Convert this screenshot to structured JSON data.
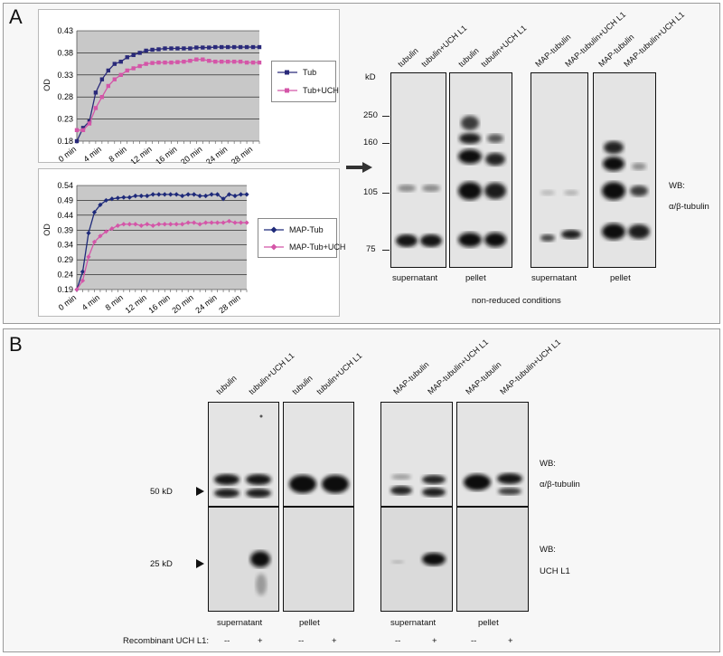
{
  "panelA": {
    "letter": "A",
    "chart1": {
      "ylabel": "OD",
      "yticks": [
        "0.43",
        "0.38",
        "0.33",
        "0.28",
        "0.23",
        "0.18"
      ],
      "xticks": [
        "0 min",
        "4 min",
        "8 min",
        "12 min",
        "16 min",
        "20 min",
        "24 min",
        "28 min"
      ],
      "legend": [
        "Tub",
        "Tub+UCH"
      ]
    },
    "chart2": {
      "ylabel": "OD",
      "yticks": [
        "0.54",
        "0.49",
        "0.44",
        "0.39",
        "0.34",
        "0.29",
        "0.24",
        "0.19"
      ],
      "xticks": [
        "0 min",
        "4 min",
        "8 min",
        "12 min",
        "16 min",
        "20 min",
        "24 min",
        "28 min"
      ],
      "legend": [
        "MAP-Tub",
        "MAP-Tub+UCH"
      ]
    },
    "blot": {
      "lanes": [
        "tubulin",
        "tubulin+UCH L1",
        "tubulin",
        "tubulin+UCH L1",
        "MAP-tubulin",
        "MAP-tubulin+UCH L1",
        "MAP-tubulin",
        "MAP-tubulin+UCH L1"
      ],
      "kd_label": "kD",
      "markers": [
        "250",
        "160",
        "105",
        "75"
      ],
      "fractions": [
        "supernatant",
        "pellet",
        "supernatant",
        "pellet"
      ],
      "condition": "non-reduced conditions",
      "wb_label": "WB:",
      "wb_target": "α/β-tubulin"
    }
  },
  "panelB": {
    "letter": "B",
    "lanes": [
      "tubulin",
      "tubulin+UCH L1",
      "tubulin",
      "tubulin+UCH L1",
      "MAP-tubulin",
      "MAP-tubulin+UCH L1",
      "MAP-tubulin",
      "MAP-tubulin+UCH L1"
    ],
    "marker_top": "50 kD",
    "marker_bottom": "25 kD",
    "wb_top_label": "WB:",
    "wb_top_target": "α/β-tubulin",
    "wb_bottom_label": "WB:",
    "wb_bottom_target": "UCH L1",
    "fractions": [
      "supernatant",
      "pellet",
      "supernatant",
      "pellet"
    ],
    "recombinant_label": "Recombinant UCH L1:",
    "recombinant_values": [
      "--",
      "+",
      "--",
      "+",
      "--",
      "+",
      "--",
      "+"
    ]
  },
  "chart_data": [
    {
      "type": "line",
      "ylabel": "OD",
      "ylim": [
        0.18,
        0.43
      ],
      "x": [
        0,
        1,
        2,
        3,
        4,
        5,
        6,
        7,
        8,
        9,
        10,
        11,
        12,
        13,
        14,
        15,
        16,
        17,
        18,
        19,
        20,
        21,
        22,
        23,
        24,
        25,
        26,
        27,
        28,
        29
      ],
      "xticks": [
        "0 min",
        "4 min",
        "8 min",
        "12 min",
        "16 min",
        "20 min",
        "24 min",
        "28 min"
      ],
      "series": [
        {
          "name": "Tub",
          "color": "#2a2a7a",
          "marker": "square",
          "values": [
            0.18,
            0.21,
            0.225,
            0.29,
            0.32,
            0.34,
            0.355,
            0.36,
            0.37,
            0.375,
            0.38,
            0.385,
            0.387,
            0.388,
            0.39,
            0.39,
            0.39,
            0.39,
            0.39,
            0.392,
            0.392,
            0.392,
            0.393,
            0.393,
            0.393,
            0.393,
            0.393,
            0.393,
            0.393,
            0.393
          ]
        },
        {
          "name": "Tub+UCH",
          "color": "#d456a8",
          "marker": "square",
          "values": [
            0.205,
            0.205,
            0.22,
            0.255,
            0.28,
            0.305,
            0.32,
            0.33,
            0.34,
            0.345,
            0.35,
            0.355,
            0.357,
            0.358,
            0.358,
            0.358,
            0.359,
            0.36,
            0.362,
            0.365,
            0.365,
            0.362,
            0.36,
            0.36,
            0.36,
            0.36,
            0.36,
            0.358,
            0.358,
            0.358
          ]
        }
      ]
    },
    {
      "type": "line",
      "ylabel": "OD",
      "ylim": [
        0.19,
        0.54
      ],
      "x": [
        0,
        1,
        2,
        3,
        4,
        5,
        6,
        7,
        8,
        9,
        10,
        11,
        12,
        13,
        14,
        15,
        16,
        17,
        18,
        19,
        20,
        21,
        22,
        23,
        24,
        25,
        26,
        27,
        28,
        29
      ],
      "xticks": [
        "0 min",
        "4 min",
        "8 min",
        "12 min",
        "16 min",
        "20 min",
        "24 min",
        "28 min"
      ],
      "series": [
        {
          "name": "MAP-Tub",
          "color": "#1e2a7a",
          "marker": "diamond",
          "values": [
            0.19,
            0.25,
            0.38,
            0.45,
            0.475,
            0.49,
            0.495,
            0.498,
            0.5,
            0.5,
            0.505,
            0.505,
            0.505,
            0.51,
            0.51,
            0.51,
            0.51,
            0.51,
            0.505,
            0.51,
            0.51,
            0.505,
            0.505,
            0.51,
            0.51,
            0.495,
            0.51,
            0.505,
            0.51,
            0.51
          ]
        },
        {
          "name": "MAP-Tub+UCH",
          "color": "#d456a8",
          "marker": "diamond",
          "values": [
            0.19,
            0.22,
            0.3,
            0.35,
            0.37,
            0.385,
            0.395,
            0.405,
            0.41,
            0.41,
            0.41,
            0.405,
            0.41,
            0.405,
            0.41,
            0.41,
            0.41,
            0.41,
            0.41,
            0.415,
            0.415,
            0.41,
            0.415,
            0.415,
            0.415,
            0.415,
            0.42,
            0.415,
            0.415,
            0.415
          ]
        }
      ]
    }
  ]
}
